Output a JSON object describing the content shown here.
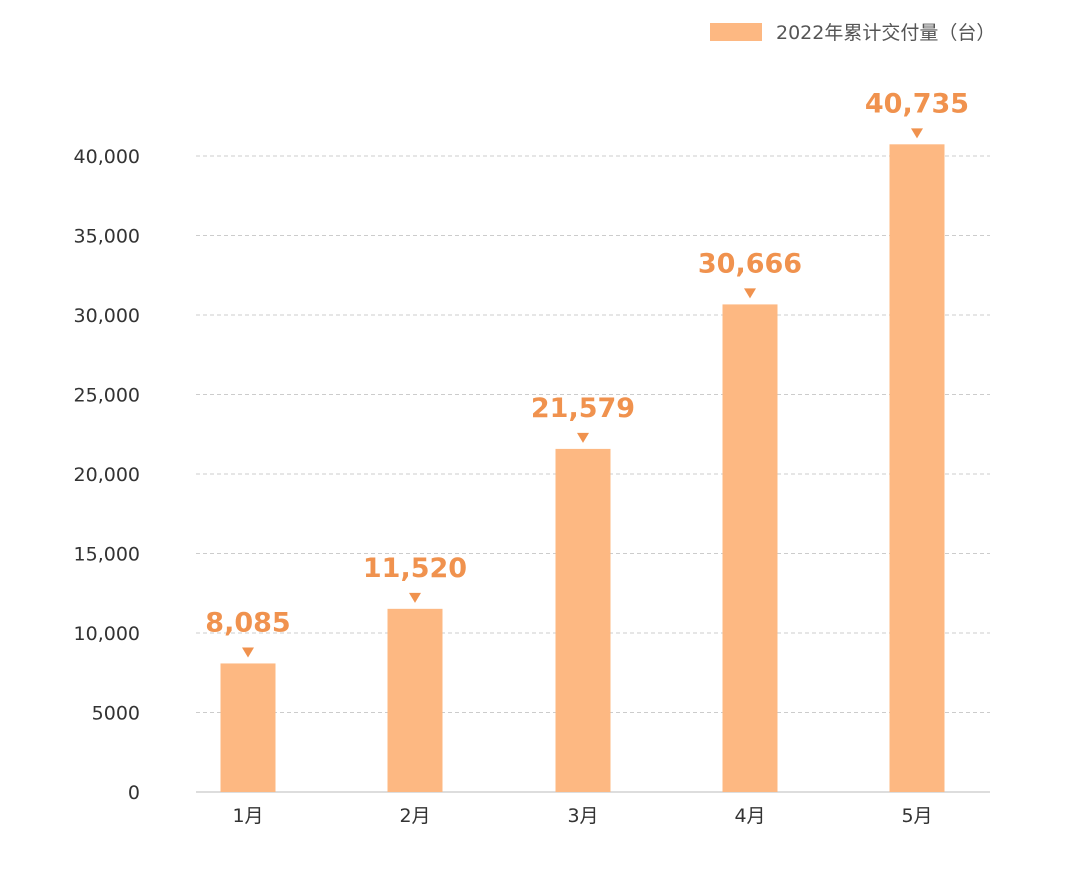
{
  "chart_data": {
    "type": "bar",
    "categories": [
      "1月",
      "2月",
      "3月",
      "4月",
      "5月"
    ],
    "series": [
      {
        "name": "2022年累计交付量（台）",
        "values": [
          8085,
          11520,
          21579,
          30666,
          40735
        ]
      }
    ],
    "data_labels": [
      "8,085",
      "11,520",
      "21,579",
      "30,666",
      "40,735"
    ],
    "y_ticks": [
      0,
      5000,
      10000,
      15000,
      20000,
      25000,
      30000,
      35000,
      40000
    ],
    "y_tick_labels": [
      "0",
      "5000",
      "10,000",
      "15,000",
      "20,000",
      "25,000",
      "30,000",
      "35,000",
      "40,000"
    ],
    "ylim": [
      0,
      40000
    ],
    "grid": true,
    "legend_position": "top-right",
    "colors": {
      "bar": "#FDB882",
      "label": "#F0924E",
      "grid": "#CCCCCC",
      "axis": "#333333",
      "baseline": "#DDDDDD"
    }
  }
}
